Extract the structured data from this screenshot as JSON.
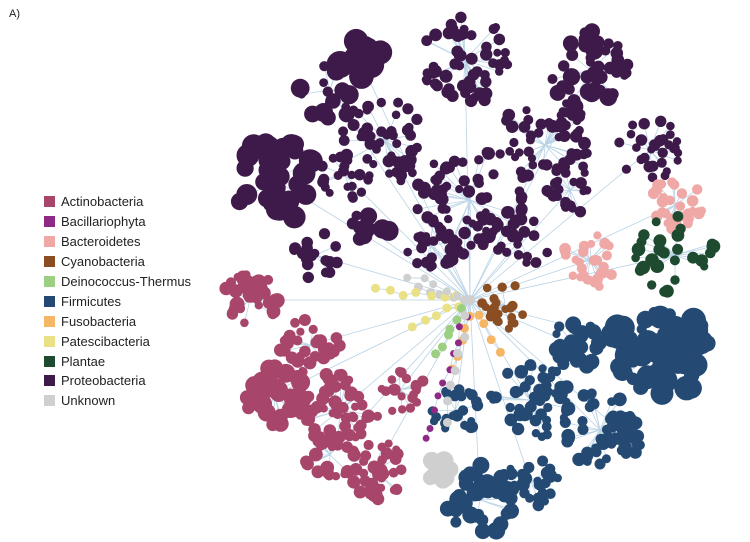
{
  "panel_label": "A)",
  "edge_color": "#b9d3e6",
  "legend": [
    {
      "label": "Actinobacteria",
      "color": "#a8456a"
    },
    {
      "label": "Bacillariophyta",
      "color": "#8e2a86"
    },
    {
      "label": "Bacteroidetes",
      "color": "#f0a8a6"
    },
    {
      "label": "Cyanobacteria",
      "color": "#8a4e22"
    },
    {
      "label": "Deinococcus-Thermus",
      "color": "#9ccf82"
    },
    {
      "label": "Firmicutes",
      "color": "#244a73"
    },
    {
      "label": "Fusobacteria",
      "color": "#f5b766"
    },
    {
      "label": "Patescibacteria",
      "color": "#eae186"
    },
    {
      "label": "Plantae",
      "color": "#1e4a30"
    },
    {
      "label": "Proteobacteria",
      "color": "#3d1a4a"
    },
    {
      "label": "Unknown",
      "color": "#cfcfcf"
    }
  ]
}
